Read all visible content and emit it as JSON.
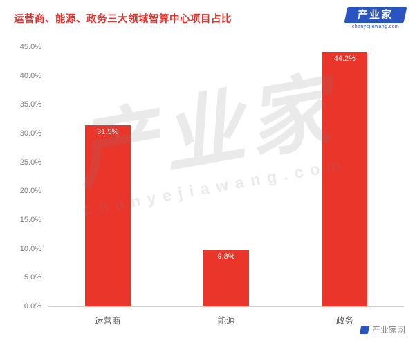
{
  "header": {
    "title": "运营商、能源、政务三大领域智算中心项目占比",
    "logo": {
      "text": "产业家",
      "subtext": "chanyejiawang.com"
    }
  },
  "chart_data": {
    "type": "bar",
    "title": "运营商、能源、政务三大领域智算中心项目占比",
    "categories": [
      "运营商",
      "能源",
      "政务"
    ],
    "values": [
      31.5,
      9.8,
      44.2
    ],
    "value_labels": [
      "31.5%",
      "9.8%",
      "44.2%"
    ],
    "xlabel": "",
    "ylabel": "",
    "ylim": [
      0,
      45
    ],
    "yticks": [
      {
        "value": 0,
        "label": "0.0%"
      },
      {
        "value": 5,
        "label": "5.0%"
      },
      {
        "value": 10,
        "label": "10.0%"
      },
      {
        "value": 15,
        "label": "15.0%"
      },
      {
        "value": 20,
        "label": "20.0%"
      },
      {
        "value": 25,
        "label": "25.0%"
      },
      {
        "value": 30,
        "label": "30.0%"
      },
      {
        "value": 35,
        "label": "35.0%"
      },
      {
        "value": 40,
        "label": "40.0%"
      },
      {
        "value": 45,
        "label": "45.0%"
      }
    ],
    "grid": false,
    "legend": false,
    "bar_color": "#ea352b"
  },
  "colors": {
    "title_red": "#e0322d",
    "bar_red": "#ea352b",
    "logo_blue": "#2a55c0",
    "axis_text_gray": "#7c7c7c"
  },
  "watermark": {
    "line1": "产业家",
    "line2": "chanyejiawang.com"
  },
  "footer": {
    "credit": "产业家网"
  }
}
